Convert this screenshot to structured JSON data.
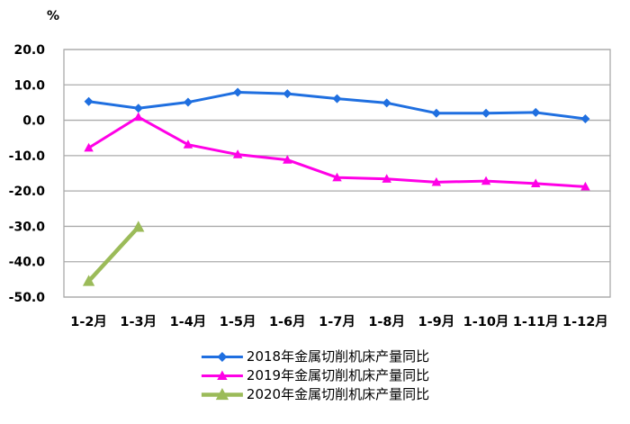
{
  "chart_data": {
    "type": "line",
    "title": "",
    "xlabel": "",
    "ylabel": "%",
    "categories": [
      "1-2月",
      "1-3月",
      "1-4月",
      "1-5月",
      "1-6月",
      "1-7月",
      "1-8月",
      "1-9月",
      "1-10月",
      "1-11月",
      "1-12月"
    ],
    "y_ticks": [
      20.0,
      10.0,
      0.0,
      -10.0,
      -20.0,
      -30.0,
      -40.0,
      -50.0
    ],
    "ylim": [
      -50,
      20
    ],
    "grid": true,
    "legend_position": "bottom",
    "series": [
      {
        "name": "2018年金属切削机床产量同比",
        "color": "#1F6FE0",
        "marker": "diamond",
        "line_width": 3,
        "marker_size": 10,
        "values": [
          5.3,
          3.4,
          5.1,
          7.9,
          7.5,
          6.1,
          4.9,
          2.0,
          2.0,
          2.2,
          0.4
        ]
      },
      {
        "name": "2019年金属切削机床产量同比",
        "color": "#FF00E6",
        "marker": "triangle",
        "line_width": 3,
        "marker_size": 11,
        "values": [
          -7.8,
          0.9,
          -6.9,
          -9.7,
          -11.2,
          -16.2,
          -16.6,
          -17.5,
          -17.2,
          -17.9,
          -18.8
        ]
      },
      {
        "name": "2020年金属切削机床产量同比",
        "color": "#9BBB59",
        "marker": "triangle",
        "line_width": 4.5,
        "marker_size": 14,
        "values": [
          -45.5,
          -30.2,
          null,
          null,
          null,
          null,
          null,
          null,
          null,
          null,
          null
        ]
      }
    ]
  },
  "colors": {
    "gridline": "#ABABAB",
    "axis_text": "#000000",
    "background": "#FFFFFF"
  }
}
